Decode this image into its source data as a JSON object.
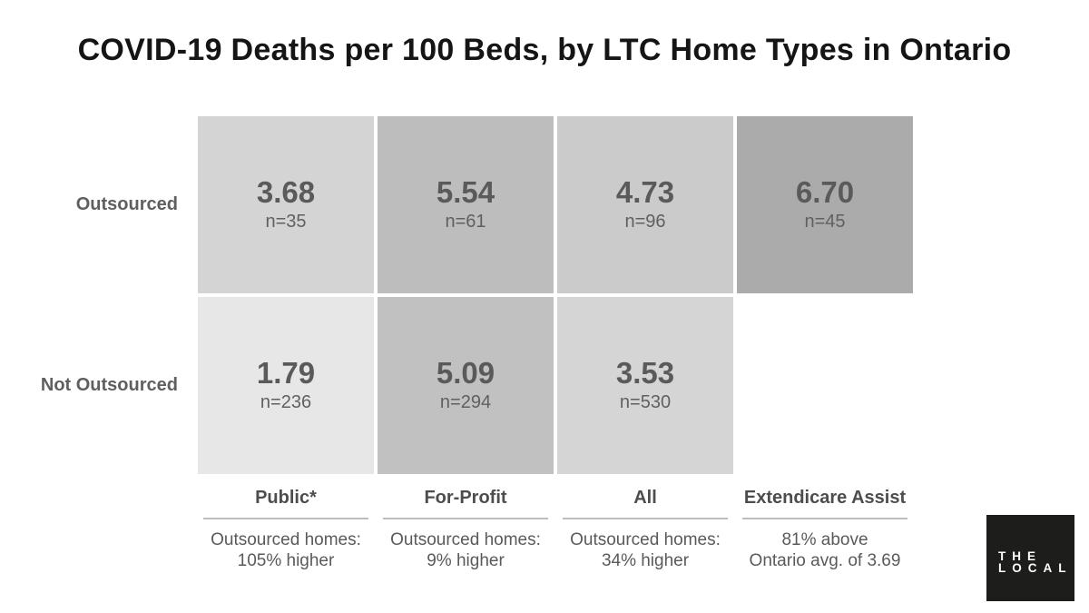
{
  "title": "COVID-19 Deaths per 100 Beds, by LTC Home Types in Ontario",
  "chart_data": {
    "type": "heatmap",
    "title": "COVID-19 Deaths per 100 Beds, by LTC Home Types in Ontario",
    "value_unit": "COVID-19 deaths per 100 beds",
    "row_categories": [
      "Outsourced",
      "Not Outsourced"
    ],
    "column_categories": [
      "Public*",
      "For-Profit",
      "All",
      "Extendicare Assist"
    ],
    "rows": [
      {
        "label": "Outsourced"
      },
      {
        "label": "Not Outsourced"
      }
    ],
    "columns": [
      {
        "label": "Public*",
        "note": "Outsourced homes:\n105% higher"
      },
      {
        "label": "For-Profit",
        "note": "Outsourced homes:\n9% higher"
      },
      {
        "label": "All",
        "note": "Outsourced homes:\n34% higher"
      },
      {
        "label": "Extendicare Assist",
        "note": "81% above\nOntario avg. of 3.69"
      }
    ],
    "cells": [
      [
        {
          "row": "Outsourced",
          "column": "Public*",
          "value": 3.68,
          "n": 35,
          "value_label": "3.68",
          "n_label": "n=35",
          "color": "#d4d4d4"
        },
        {
          "row": "Outsourced",
          "column": "For-Profit",
          "value": 5.54,
          "n": 61,
          "value_label": "5.54",
          "n_label": "n=61",
          "color": "#bdbdbd"
        },
        {
          "row": "Outsourced",
          "column": "All",
          "value": 4.73,
          "n": 96,
          "value_label": "4.73",
          "n_label": "n=96",
          "color": "#cbcbcb"
        },
        {
          "row": "Outsourced",
          "column": "Extendicare Assist",
          "value": 6.7,
          "n": 45,
          "value_label": "6.70",
          "n_label": "n=45",
          "color": "#ababab"
        }
      ],
      [
        {
          "row": "Not Outsourced",
          "column": "Public*",
          "value": 1.79,
          "n": 236,
          "value_label": "1.79",
          "n_label": "n=236",
          "color": "#e7e7e7"
        },
        {
          "row": "Not Outsourced",
          "column": "For-Profit",
          "value": 5.09,
          "n": 294,
          "value_label": "5.09",
          "n_label": "n=294",
          "color": "#c1c1c1"
        },
        {
          "row": "Not Outsourced",
          "column": "All",
          "value": 3.53,
          "n": 530,
          "value_label": "3.53",
          "n_label": "n=530",
          "color": "#d5d5d5"
        },
        null
      ]
    ]
  },
  "logo": {
    "line1": "THE",
    "line2": "LOCAL",
    "bg": "#1d1d1b",
    "fg": "#ffffff"
  }
}
